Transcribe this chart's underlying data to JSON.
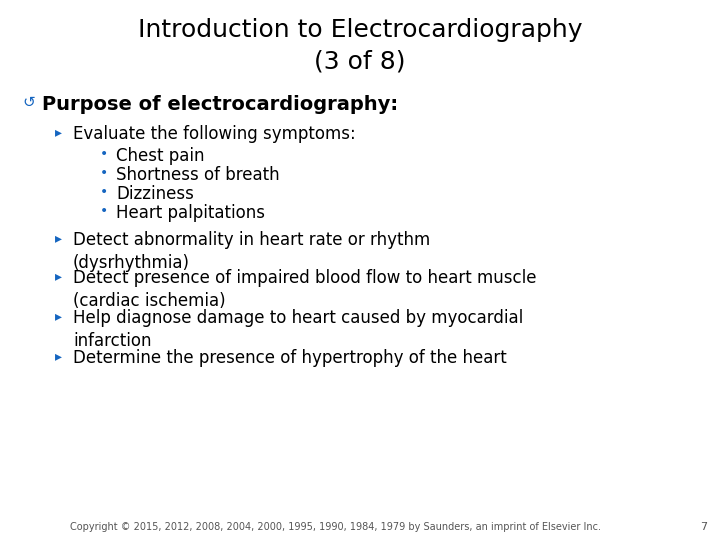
{
  "title_line1": "Introduction to Electrocardiography",
  "title_line2": "(3 of 8)",
  "title_fontsize": 18,
  "title_color": "#000000",
  "bg_color": "#ffffff",
  "bullet1_text": "Purpose of electrocardiography:",
  "bullet1_fontsize": 14,
  "level2_color": "#1565c0",
  "level2_fontsize": 12,
  "level3_color": "#1565c0",
  "level3_fontsize": 12,
  "body_color": "#000000",
  "copyright": "Copyright © 2015, 2012, 2008, 2004, 2000, 1995, 1990, 1984, 1979 by Saunders, an imprint of Elsevier Inc.",
  "page_num": "7",
  "copyright_fontsize": 7,
  "level2_items": [
    "Evaluate the following symptoms:",
    "Detect abnormality in heart rate or rhythm\n(dysrhythmia)",
    "Detect presence of impaired blood flow to heart muscle\n(cardiac ischemia)",
    "Help diagnose damage to heart caused by myocardial\ninfarction",
    "Determine the presence of hypertrophy of the heart"
  ],
  "level3_items": [
    "Chest pain",
    "Shortness of breath",
    "Dizziness",
    "Heart palpitations"
  ],
  "symbol_color": "#1565c0"
}
